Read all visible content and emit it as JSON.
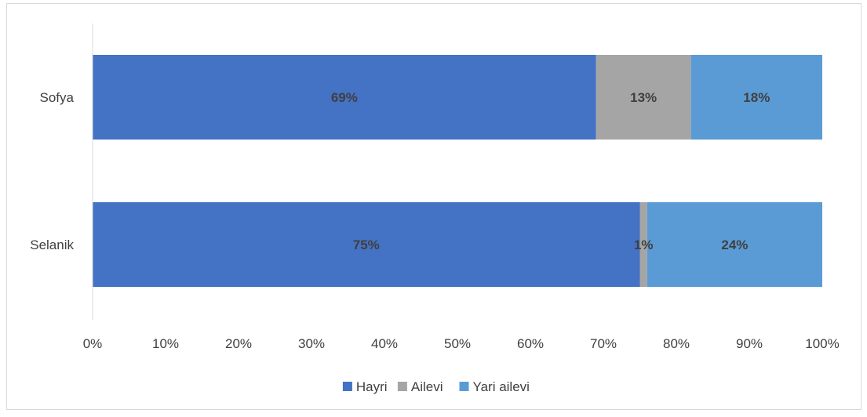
{
  "chart_data": {
    "type": "bar",
    "orientation": "horizontal",
    "stacked": "percent",
    "categories": [
      "Sofya",
      "Selanik"
    ],
    "series": [
      {
        "name": "Hayri",
        "values": [
          69,
          75
        ],
        "labels": [
          "69%",
          "75%"
        ],
        "color": "#4472C4"
      },
      {
        "name": "Ailevi",
        "values": [
          13,
          1
        ],
        "labels": [
          "13%",
          "1%"
        ],
        "color": "#A5A5A5"
      },
      {
        "name": "Yari ailevi",
        "values": [
          18,
          24
        ],
        "labels": [
          "18%",
          "24%"
        ],
        "color": "#5B9BD5"
      }
    ],
    "x_ticks": [
      "0%",
      "10%",
      "20%",
      "30%",
      "40%",
      "50%",
      "60%",
      "70%",
      "80%",
      "90%",
      "100%"
    ],
    "xlim": [
      0,
      100
    ],
    "grid": false,
    "legend": "bottom",
    "title": "",
    "xlabel": "",
    "ylabel": ""
  }
}
